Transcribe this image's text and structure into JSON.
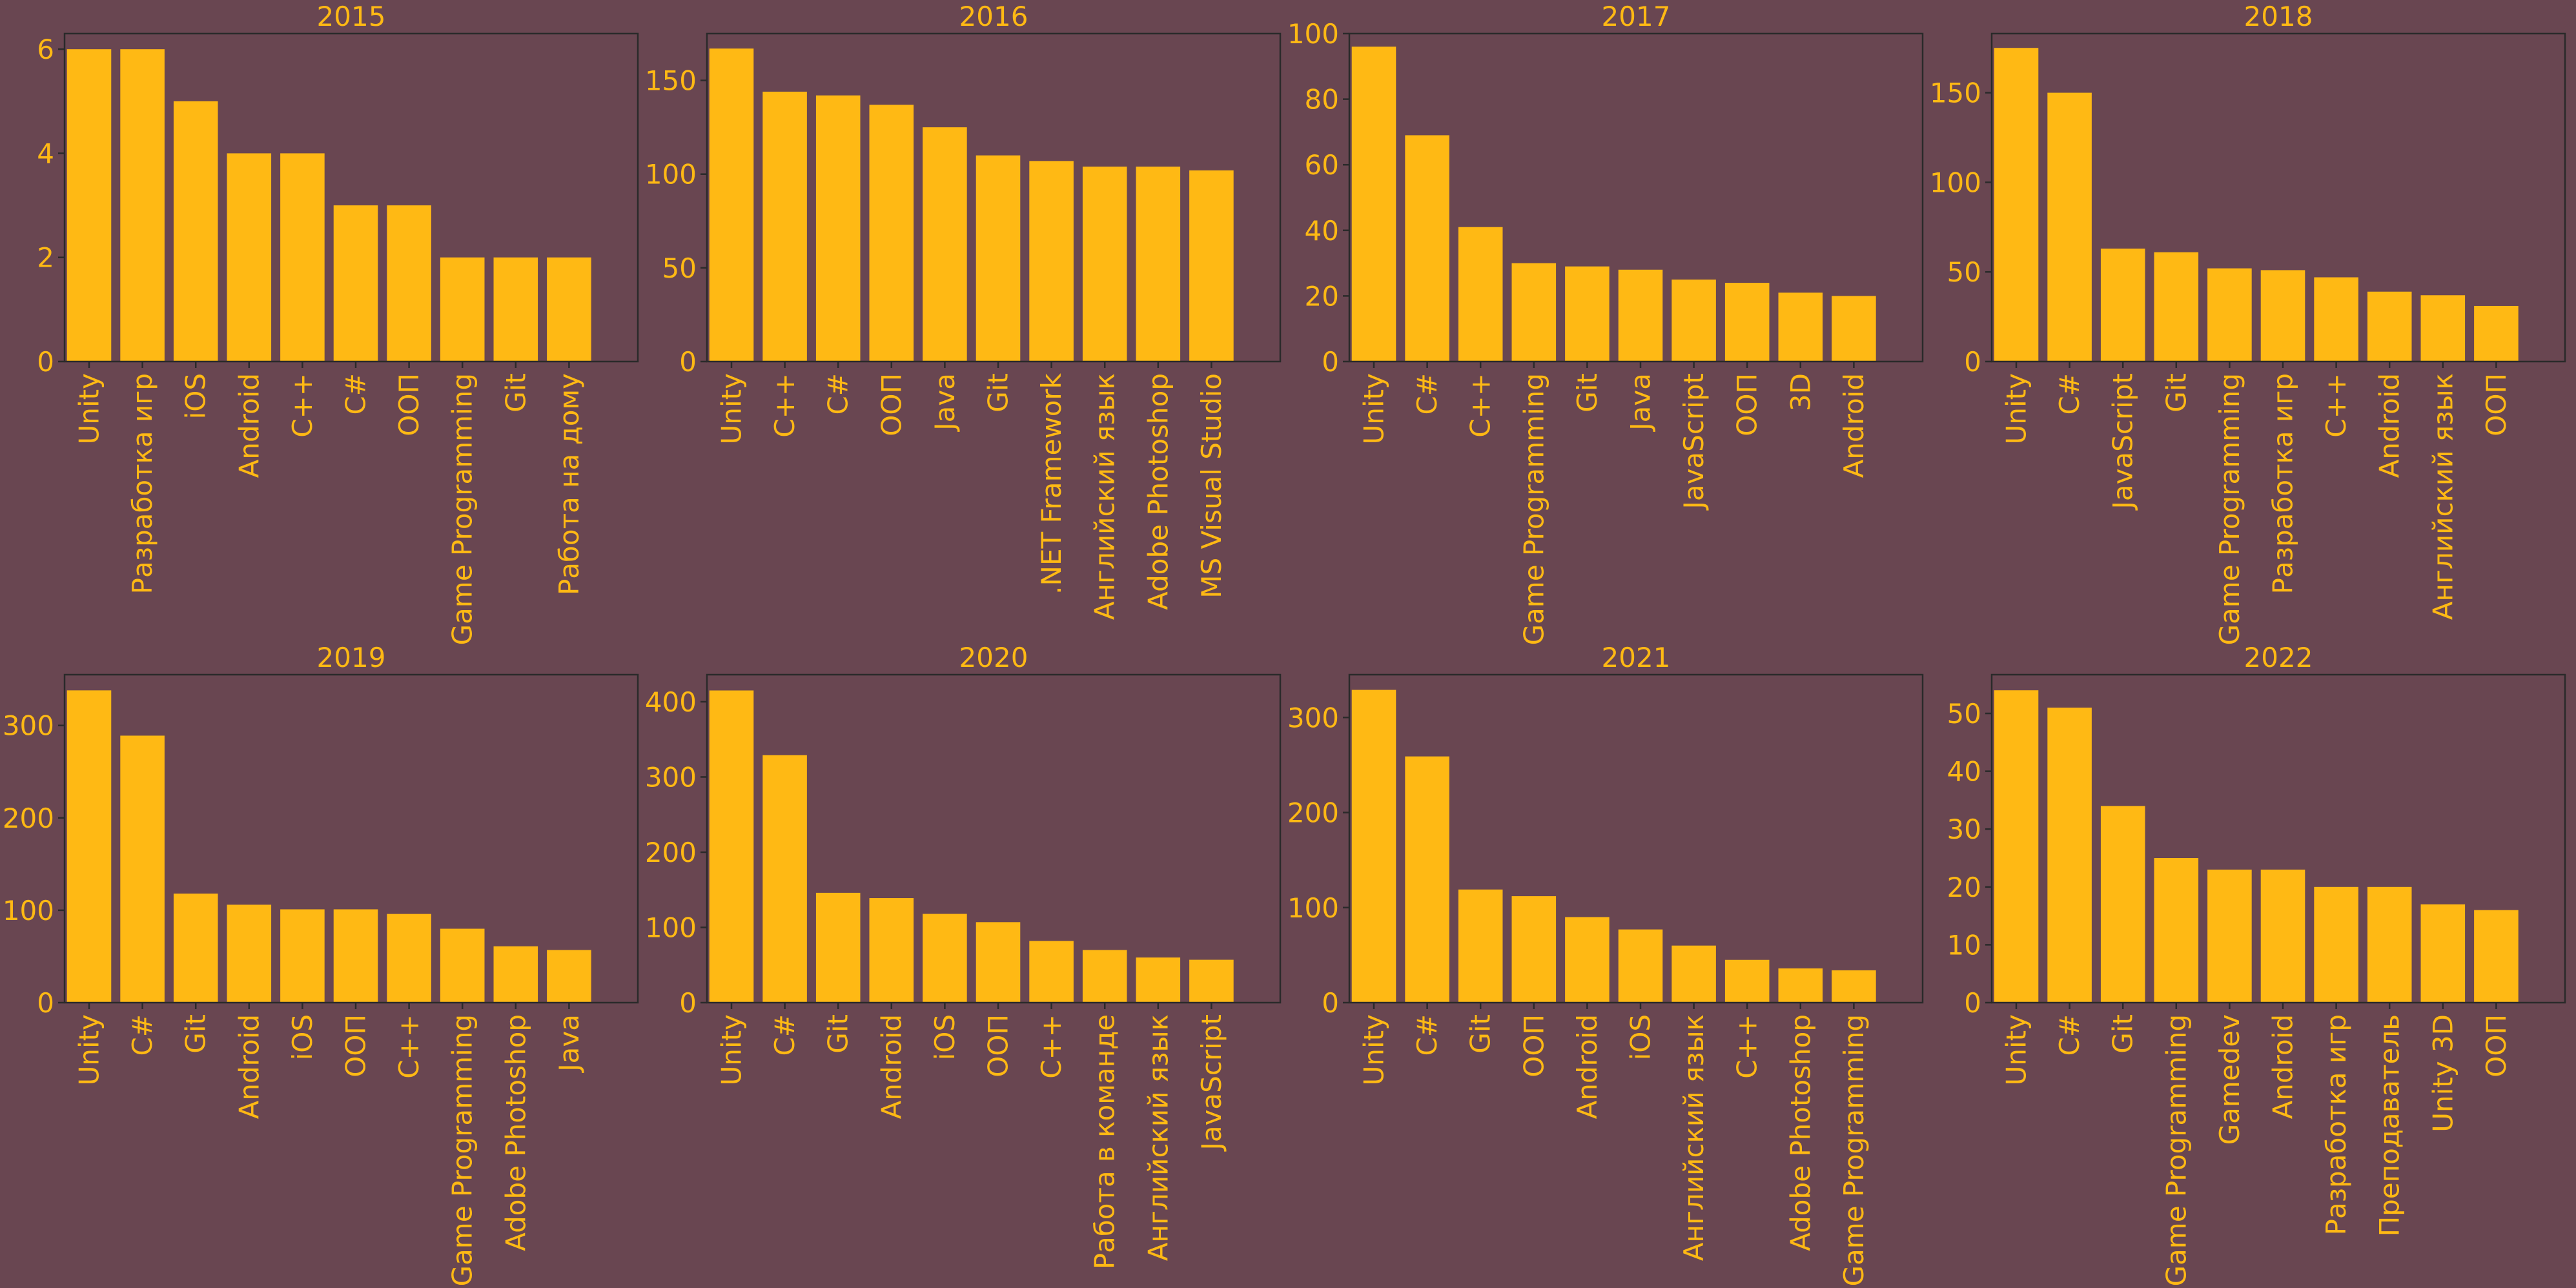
{
  "colors": {
    "background": "#694651",
    "bar": "#FFB914",
    "text": "#FFB914",
    "axis": "#2a2a2a"
  },
  "chart_data": [
    {
      "type": "bar",
      "title": "2015",
      "categories": [
        "Unity",
        "Разработка игр",
        "iOS",
        "Android",
        "C++",
        "C#",
        "ООП",
        "Game Programming",
        "Git",
        "Работа на дому"
      ],
      "values": [
        6,
        6,
        5,
        4,
        4,
        3,
        3,
        2,
        2,
        2
      ],
      "ylim": [
        0,
        6.3
      ],
      "yticks": [
        0,
        2,
        4,
        6
      ],
      "grid": false
    },
    {
      "type": "bar",
      "title": "2016",
      "categories": [
        "Unity",
        "C++",
        "C#",
        "ООП",
        "Java",
        "Git",
        ".NET Framework",
        "Английский язык",
        "Adobe Photoshop",
        "MS Visual Studio"
      ],
      "values": [
        167,
        144,
        142,
        137,
        125,
        110,
        107,
        104,
        104,
        102
      ],
      "ylim": [
        0,
        175
      ],
      "yticks": [
        0,
        50,
        100,
        150
      ],
      "grid": false
    },
    {
      "type": "bar",
      "title": "2017",
      "categories": [
        "Unity",
        "C#",
        "C++",
        "Game Programming",
        "Git",
        "Java",
        "JavaScript",
        "ООП",
        "3D",
        "Android"
      ],
      "values": [
        96,
        69,
        41,
        30,
        29,
        28,
        25,
        24,
        21,
        20
      ],
      "ylim": [
        0,
        100
      ],
      "yticks": [
        0,
        20,
        40,
        60,
        80,
        100
      ],
      "grid": false
    },
    {
      "type": "bar",
      "title": "2018",
      "categories": [
        "Unity",
        "C#",
        "JavaScript",
        "Git",
        "Game Programming",
        "Разработка игр",
        "C++",
        "Android",
        "Английский язык",
        "ООП"
      ],
      "values": [
        175,
        150,
        63,
        61,
        52,
        51,
        47,
        39,
        37,
        31
      ],
      "ylim": [
        0,
        183
      ],
      "yticks": [
        0,
        50,
        100,
        150
      ],
      "grid": false
    },
    {
      "type": "bar",
      "title": "2019",
      "categories": [
        "Unity",
        "C#",
        "Git",
        "Android",
        "iOS",
        "ООП",
        "C++",
        "Game Programming",
        "Adobe Photoshop",
        "Java"
      ],
      "values": [
        338,
        289,
        118,
        106,
        101,
        101,
        96,
        80,
        61,
        57
      ],
      "ylim": [
        0,
        355
      ],
      "yticks": [
        0,
        100,
        200,
        300
      ],
      "grid": false
    },
    {
      "type": "bar",
      "title": "2020",
      "categories": [
        "Unity",
        "C#",
        "Git",
        "Android",
        "iOS",
        "ООП",
        "C++",
        "Работа в команде",
        "Английский язык",
        "JavaScript"
      ],
      "values": [
        415,
        329,
        146,
        139,
        118,
        107,
        82,
        70,
        60,
        57
      ],
      "ylim": [
        0,
        436
      ],
      "yticks": [
        0,
        100,
        200,
        300,
        400
      ],
      "grid": false
    },
    {
      "type": "bar",
      "title": "2021",
      "categories": [
        "Unity",
        "C#",
        "Git",
        "ООП",
        "Android",
        "iOS",
        "Английский язык",
        "C++",
        "Adobe Photoshop",
        "Game Programming"
      ],
      "values": [
        329,
        259,
        119,
        112,
        90,
        77,
        60,
        45,
        36,
        34
      ],
      "ylim": [
        0,
        345
      ],
      "yticks": [
        0,
        100,
        200,
        300
      ],
      "grid": false
    },
    {
      "type": "bar",
      "title": "2022",
      "categories": [
        "Unity",
        "C#",
        "Git",
        "Game Programming",
        "Gamedev",
        "Android",
        "Разработка игр",
        "Преподаватель",
        "Unity 3D",
        "ООП"
      ],
      "values": [
        54,
        51,
        34,
        25,
        23,
        23,
        20,
        20,
        17,
        16
      ],
      "ylim": [
        0,
        56.7
      ],
      "yticks": [
        0,
        10,
        20,
        30,
        40,
        50
      ],
      "grid": false
    }
  ]
}
